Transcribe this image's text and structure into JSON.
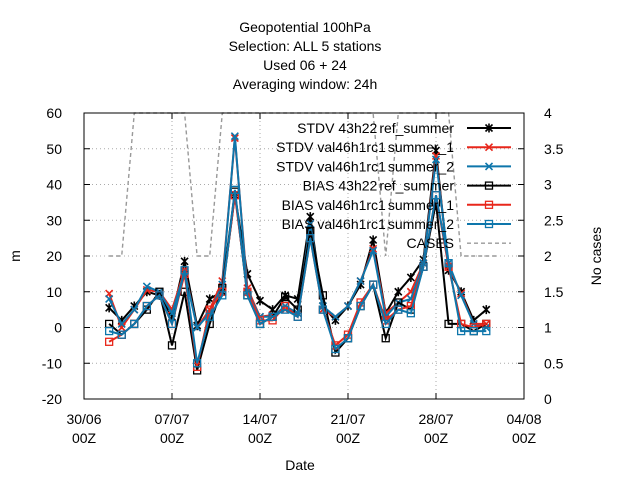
{
  "chart_data": {
    "type": "line",
    "title_lines": [
      "Geopotential 100hPa",
      "Selection: ALL       5 stations",
      "Used  06  + 24",
      "Averaging window: 24h"
    ],
    "xlabel": "Date",
    "ylabel": "m",
    "y2label": "No cases",
    "ylim": [
      -20,
      60
    ],
    "y2lim": [
      0,
      4
    ],
    "yticks": [
      "-20",
      "-10",
      "0",
      "10",
      "20",
      "30",
      "40",
      "50",
      "60"
    ],
    "y2ticks": [
      "0",
      "0.5",
      "1",
      "1.5",
      "2",
      "2.5",
      "3",
      "3.5",
      "4"
    ],
    "xlim_days": [
      0,
      35
    ],
    "xticks": [
      {
        "day": 0,
        "date": "30/06",
        "hour": "00Z"
      },
      {
        "day": 7,
        "date": "07/07",
        "hour": "00Z"
      },
      {
        "day": 14,
        "date": "14/07",
        "hour": "00Z"
      },
      {
        "day": 21,
        "date": "21/07",
        "hour": "00Z"
      },
      {
        "day": 28,
        "date": "28/07",
        "hour": "00Z"
      },
      {
        "day": 35,
        "date": "04/08",
        "hour": "00Z"
      }
    ],
    "grid": true,
    "legend_position": "top-right",
    "series": [
      {
        "name": "STDV 43h22_ref_summer",
        "label_main": "STDV 43h22",
        "label_sub": "ref_summer",
        "color": "#000000",
        "marker": "star",
        "axis": "y1",
        "values": [
          [
            2,
            5.5
          ],
          [
            3,
            2
          ],
          [
            4,
            6
          ],
          [
            5,
            10
          ],
          [
            6,
            9
          ],
          [
            7,
            3
          ],
          [
            8,
            18.5
          ],
          [
            9,
            0.5
          ],
          [
            10,
            8
          ],
          [
            11,
            10
          ],
          [
            12,
            37
          ],
          [
            13,
            15
          ],
          [
            14,
            7.5
          ],
          [
            15,
            5
          ],
          [
            16,
            9
          ],
          [
            17,
            8
          ],
          [
            18,
            31
          ],
          [
            19,
            6
          ],
          [
            20,
            2
          ],
          [
            21,
            6
          ],
          [
            22,
            12
          ],
          [
            23,
            24.5
          ],
          [
            24,
            4
          ],
          [
            25,
            10
          ],
          [
            26,
            14
          ],
          [
            27,
            19
          ],
          [
            28,
            49.5
          ],
          [
            29,
            16
          ],
          [
            30,
            10
          ],
          [
            31,
            2
          ],
          [
            32,
            5
          ]
        ]
      },
      {
        "name": "STDV val46h1rc1_summer_1",
        "label_main": "STDV val46h1rc1",
        "label_sub": "summer_1",
        "color": "#e8271b",
        "marker": "x",
        "axis": "y1",
        "values": [
          [
            2,
            9.5
          ],
          [
            3,
            0
          ],
          [
            4,
            5
          ],
          [
            5,
            10.5
          ],
          [
            6,
            10
          ],
          [
            7,
            5
          ],
          [
            8,
            16
          ],
          [
            9,
            0
          ],
          [
            10,
            5
          ],
          [
            11,
            13
          ],
          [
            12,
            53
          ],
          [
            13,
            11
          ],
          [
            14,
            3
          ],
          [
            15,
            3.5
          ],
          [
            16,
            5
          ],
          [
            17,
            4
          ],
          [
            18,
            29
          ],
          [
            19,
            5
          ],
          [
            20,
            3
          ],
          [
            21,
            6
          ],
          [
            22,
            13
          ],
          [
            23,
            22
          ],
          [
            24,
            4
          ],
          [
            25,
            7
          ],
          [
            26,
            10
          ],
          [
            27,
            18
          ],
          [
            28,
            48
          ],
          [
            29,
            17
          ],
          [
            30,
            9.5
          ],
          [
            31,
            1
          ],
          [
            32,
            1
          ]
        ]
      },
      {
        "name": "STDV val46h1rc1_summer_2",
        "label_main": "STDV val46h1rc1",
        "label_sub": "summer_2",
        "color": "#0e76ab",
        "marker": "x",
        "axis": "y1",
        "values": [
          [
            2,
            8
          ],
          [
            3,
            1
          ],
          [
            4,
            5
          ],
          [
            5,
            11.5
          ],
          [
            6,
            10
          ],
          [
            7,
            4
          ],
          [
            8,
            15.5
          ],
          [
            9,
            0
          ],
          [
            10,
            4
          ],
          [
            11,
            12
          ],
          [
            12,
            53.5
          ],
          [
            13,
            10
          ],
          [
            14,
            3
          ],
          [
            15,
            3
          ],
          [
            16,
            6
          ],
          [
            17,
            4
          ],
          [
            18,
            29
          ],
          [
            19,
            6
          ],
          [
            20,
            3
          ],
          [
            21,
            6
          ],
          [
            22,
            13
          ],
          [
            23,
            21.5
          ],
          [
            24,
            3
          ],
          [
            25,
            7
          ],
          [
            26,
            8
          ],
          [
            27,
            18
          ],
          [
            28,
            47
          ],
          [
            29,
            18
          ],
          [
            30,
            9
          ],
          [
            31,
            1
          ],
          [
            32,
            0
          ]
        ]
      },
      {
        "name": "BIAS 43h22_ref_summer",
        "label_main": "BIAS 43h22",
        "label_sub": "ref_summer",
        "color": "#000000",
        "marker": "square",
        "axis": "y1",
        "values": [
          [
            2,
            1
          ],
          [
            3,
            -2
          ],
          [
            4,
            1
          ],
          [
            5,
            5
          ],
          [
            6,
            10
          ],
          [
            7,
            -5
          ],
          [
            8,
            10
          ],
          [
            9,
            -12
          ],
          [
            10,
            1
          ],
          [
            11,
            11
          ],
          [
            12,
            38
          ],
          [
            13,
            9
          ],
          [
            14,
            1
          ],
          [
            15,
            3
          ],
          [
            16,
            8.5
          ],
          [
            17,
            5
          ],
          [
            18,
            27
          ],
          [
            19,
            9
          ],
          [
            20,
            -7
          ],
          [
            21,
            -3
          ],
          [
            22,
            6
          ],
          [
            23,
            12
          ],
          [
            24,
            -3
          ],
          [
            25,
            7
          ],
          [
            26,
            5
          ],
          [
            27,
            17
          ],
          [
            28,
            35
          ],
          [
            29,
            1
          ],
          [
            30,
            1
          ],
          [
            31,
            -1
          ],
          [
            32,
            1
          ]
        ]
      },
      {
        "name": "BIAS val46h1rc1_summer_1",
        "label_main": "BIAS val46h1rc1",
        "label_sub": "summer_1",
        "color": "#e8271b",
        "marker": "square",
        "axis": "y1",
        "values": [
          [
            2,
            -4
          ],
          [
            3,
            -2
          ],
          [
            4,
            1
          ],
          [
            5,
            6
          ],
          [
            6,
            9
          ],
          [
            7,
            1
          ],
          [
            8,
            15
          ],
          [
            9,
            -11
          ],
          [
            10,
            5
          ],
          [
            11,
            10
          ],
          [
            12,
            37
          ],
          [
            13,
            10
          ],
          [
            14,
            2
          ],
          [
            15,
            2
          ],
          [
            16,
            6
          ],
          [
            17,
            3
          ],
          [
            18,
            25
          ],
          [
            19,
            5
          ],
          [
            20,
            -5
          ],
          [
            21,
            -2
          ],
          [
            22,
            7
          ],
          [
            23,
            12
          ],
          [
            24,
            2
          ],
          [
            25,
            5
          ],
          [
            26,
            6
          ],
          [
            27,
            17
          ],
          [
            28,
            37
          ],
          [
            29,
            17
          ],
          [
            30,
            1
          ],
          [
            31,
            0
          ],
          [
            32,
            1
          ]
        ]
      },
      {
        "name": "BIAS val46h1rc1_summer_2",
        "label_main": "BIAS val46h1rc1",
        "label_sub": "summer_2",
        "color": "#0e76ab",
        "marker": "square",
        "axis": "y1",
        "values": [
          [
            2,
            -1
          ],
          [
            3,
            -2
          ],
          [
            4,
            1
          ],
          [
            5,
            6
          ],
          [
            6,
            9
          ],
          [
            7,
            1
          ],
          [
            8,
            16
          ],
          [
            9,
            -10
          ],
          [
            10,
            3
          ],
          [
            11,
            9
          ],
          [
            12,
            38.5
          ],
          [
            13,
            9
          ],
          [
            14,
            1
          ],
          [
            15,
            3
          ],
          [
            16,
            5
          ],
          [
            17,
            3
          ],
          [
            18,
            25
          ],
          [
            19,
            5
          ],
          [
            20,
            -6
          ],
          [
            21,
            -3
          ],
          [
            22,
            6
          ],
          [
            23,
            12
          ],
          [
            24,
            1
          ],
          [
            25,
            5
          ],
          [
            26,
            4
          ],
          [
            27,
            17
          ],
          [
            28,
            37
          ],
          [
            29,
            18
          ],
          [
            30,
            -1
          ],
          [
            31,
            -1
          ],
          [
            32,
            -1
          ]
        ]
      },
      {
        "name": "CASES",
        "label_main": "CASES",
        "label_sub": "",
        "color": "#999999",
        "marker": "none",
        "axis": "y2",
        "dashed": true,
        "values": [
          [
            2,
            2
          ],
          [
            3,
            2
          ],
          [
            4,
            4
          ],
          [
            5,
            4
          ],
          [
            6,
            4
          ],
          [
            7,
            4
          ],
          [
            8,
            4
          ],
          [
            9,
            2
          ],
          [
            10,
            2
          ],
          [
            11,
            4
          ],
          [
            12,
            4
          ],
          [
            13,
            4
          ],
          [
            14,
            4
          ],
          [
            15,
            4
          ],
          [
            16,
            4
          ],
          [
            17,
            4
          ],
          [
            18,
            4
          ],
          [
            19,
            4
          ],
          [
            20,
            4
          ],
          [
            21,
            4
          ],
          [
            22,
            4
          ],
          [
            23,
            4
          ],
          [
            24,
            2
          ],
          [
            25,
            4
          ],
          [
            26,
            4
          ],
          [
            27,
            4
          ],
          [
            28,
            4
          ],
          [
            29,
            4
          ],
          [
            30,
            2
          ],
          [
            31,
            2
          ],
          [
            32,
            2
          ],
          [
            33,
            2
          ]
        ]
      }
    ]
  }
}
